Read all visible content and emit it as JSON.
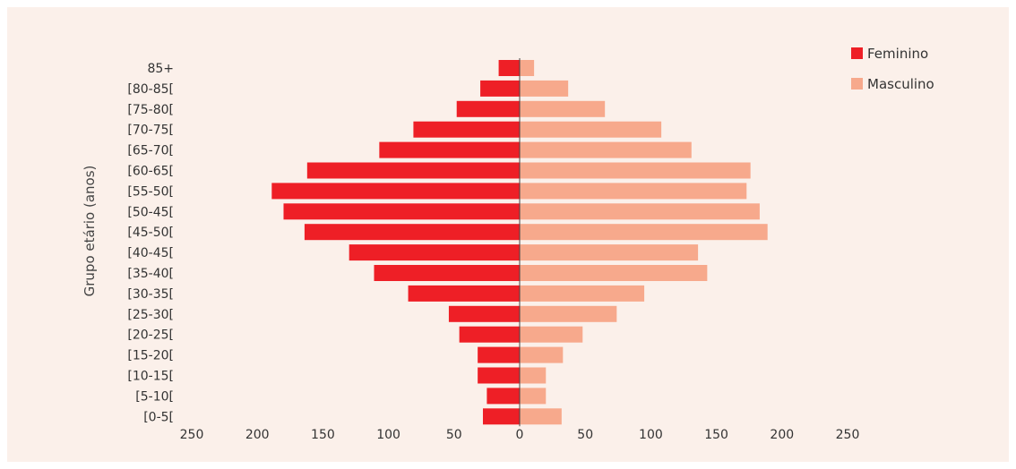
{
  "chart_data": {
    "type": "bar",
    "orientation": "horizontal",
    "subtype": "population-pyramid",
    "ylabel": "Grupo etário (anos)",
    "xlabel": "",
    "xlim": [
      -250,
      250
    ],
    "x_ticks": [
      -250,
      -200,
      -150,
      -100,
      -50,
      0,
      50,
      100,
      150,
      200,
      250
    ],
    "x_tick_labels": [
      "250",
      "200",
      "150",
      "100",
      "50",
      "0",
      "50",
      "100",
      "150",
      "200",
      "250"
    ],
    "categories": [
      "85+",
      "[80-85[",
      "[75-80[",
      "[70-75[",
      "[65-70[",
      "[60-65[",
      "[55-50[",
      "[50-45[",
      "[45-50[",
      "[40-45[",
      "[35-40[",
      "[30-35[",
      "[25-30[",
      "[20-25[",
      "[15-20[",
      "[10-15[",
      "[5-10[",
      "[0-5["
    ],
    "series": [
      {
        "name": "Feminino",
        "color": "#ee1f26",
        "values": [
          16,
          30,
          48,
          81,
          107,
          162,
          189,
          180,
          164,
          130,
          111,
          85,
          54,
          46,
          32,
          32,
          25,
          28
        ]
      },
      {
        "name": "Masculino",
        "color": "#f7a98c",
        "values": [
          11,
          37,
          65,
          108,
          131,
          176,
          173,
          183,
          189,
          136,
          143,
          95,
          74,
          48,
          33,
          20,
          20,
          32
        ]
      }
    ],
    "legend_position": "top-right",
    "grid": false
  }
}
